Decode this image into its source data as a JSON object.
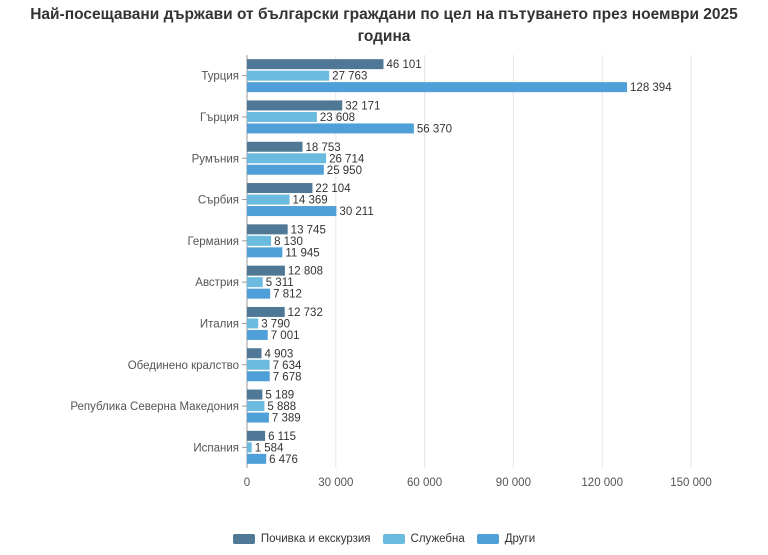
{
  "chart_data": {
    "type": "bar",
    "orientation": "horizontal",
    "title_line1": "Най-посещавани държави от български граждани по цел на пътуването през ноември 2025",
    "title_line2": "година",
    "categories": [
      "Турция",
      "Гърция",
      "Румъния",
      "Сърбия",
      "Германия",
      "Австрия",
      "Италия",
      "Обединено кралство",
      "Република Северна Македония",
      "Испания"
    ],
    "series": [
      {
        "name": "Почивка и екскурзия",
        "color": "#4e7896",
        "values": [
          46101,
          32171,
          18753,
          22104,
          13745,
          12808,
          12732,
          4903,
          5189,
          6115
        ],
        "labels": [
          "46 101",
          "32 171",
          "18 753",
          "22 104",
          "13 745",
          "12 808",
          "12 732",
          "4 903",
          "5 189",
          "6 115"
        ]
      },
      {
        "name": "Служебна",
        "color": "#6bbadf",
        "values": [
          27763,
          23608,
          26714,
          14369,
          8130,
          5311,
          3790,
          7634,
          5888,
          1584
        ],
        "labels": [
          "27 763",
          "23 608",
          "26 714",
          "14 369",
          "8 130",
          "5 311",
          "3 790",
          "7 634",
          "5 888",
          "1 584"
        ]
      },
      {
        "name": "Други",
        "color": "#4f9fd8",
        "values": [
          128394,
          56370,
          25950,
          30211,
          11945,
          7812,
          7001,
          7678,
          7389,
          6476
        ],
        "labels": [
          "128 394",
          "56 370",
          "25 950",
          "30 211",
          "11 945",
          "7 812",
          "7 001",
          "7 678",
          "7 389",
          "6 476"
        ]
      }
    ],
    "xlim": [
      0,
      150000
    ],
    "xticks": [
      0,
      30000,
      60000,
      90000,
      120000,
      150000
    ],
    "xtick_labels": [
      "0",
      "30 000",
      "60 000",
      "90 000",
      "120 000",
      "150 000"
    ],
    "grid": true,
    "legend_position": "bottom"
  }
}
